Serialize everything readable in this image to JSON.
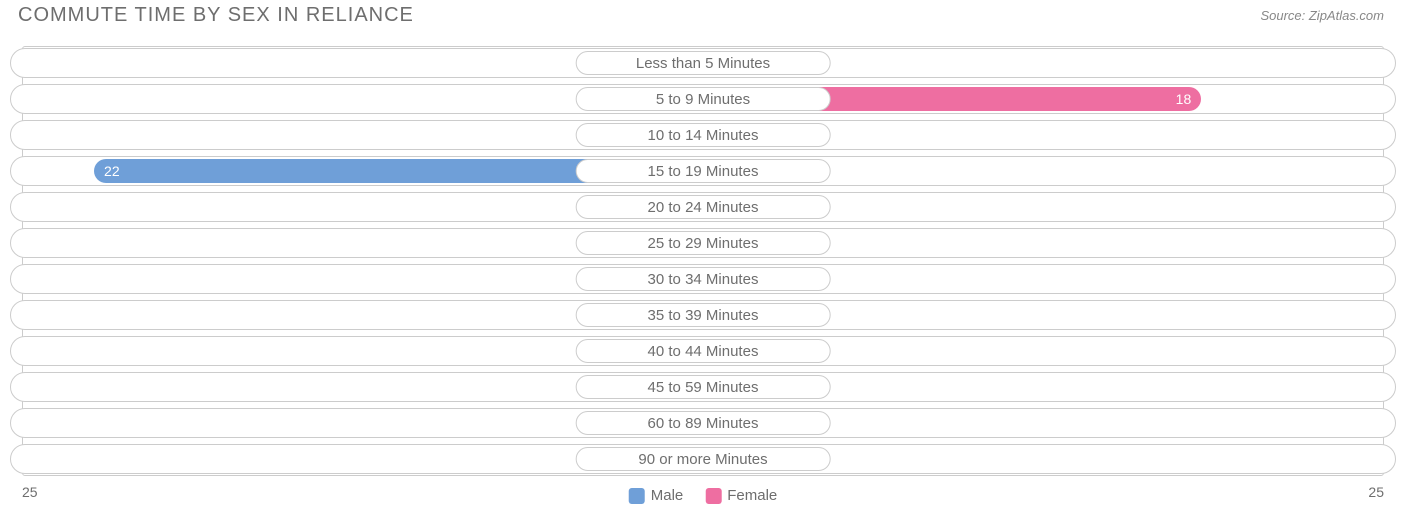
{
  "title": "Commute Time by Sex in Reliance",
  "source_prefix": "Source: ",
  "source_name": "ZipAtlas.com",
  "chart": {
    "type": "diverging-bar",
    "male_color": "#6f9fd8",
    "female_color": "#ee6ea1",
    "track_border_color": "#cccccc",
    "track_bg": "#ffffff",
    "grid_border_color": "#cccccc",
    "background_color": "#ffffff",
    "text_color": "#6e6e6e",
    "label_fontsize": 15,
    "value_fontsize": 14,
    "title_fontsize": 20,
    "axis_max": 25,
    "axis_left_label": "25",
    "axis_right_label": "25",
    "center_ratio": 0.5,
    "min_bar_ratio": 0.058,
    "label_half_ratio": 0.092,
    "categories": [
      {
        "label": "Less than 5 Minutes",
        "male": 0,
        "female": 0
      },
      {
        "label": "5 to 9 Minutes",
        "male": 0,
        "female": 18
      },
      {
        "label": "10 to 14 Minutes",
        "male": 0,
        "female": 0
      },
      {
        "label": "15 to 19 Minutes",
        "male": 22,
        "female": 0
      },
      {
        "label": "20 to 24 Minutes",
        "male": 0,
        "female": 0
      },
      {
        "label": "25 to 29 Minutes",
        "male": 0,
        "female": 0
      },
      {
        "label": "30 to 34 Minutes",
        "male": 0,
        "female": 0
      },
      {
        "label": "35 to 39 Minutes",
        "male": 0,
        "female": 0
      },
      {
        "label": "40 to 44 Minutes",
        "male": 0,
        "female": 0
      },
      {
        "label": "45 to 59 Minutes",
        "male": 0,
        "female": 0
      },
      {
        "label": "60 to 89 Minutes",
        "male": 0,
        "female": 0
      },
      {
        "label": "90 or more Minutes",
        "male": 0,
        "female": 0
      }
    ],
    "legend": [
      {
        "label": "Male",
        "color": "#6f9fd8"
      },
      {
        "label": "Female",
        "color": "#ee6ea1"
      }
    ]
  }
}
